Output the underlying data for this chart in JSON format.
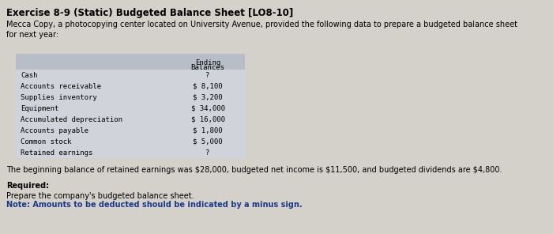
{
  "title": "Exercise 8-9 (Static) Budgeted Balance Sheet [LO8-10]",
  "intro_text": "Mecca Copy, a photocopying center located on University Avenue, provided the following data to prepare a budgeted balance sheet\nfor next year:",
  "table_rows": [
    [
      "Cash",
      "?"
    ],
    [
      "Accounts receivable",
      "$ 8,100"
    ],
    [
      "Supplies inventory",
      "$ 3,200"
    ],
    [
      "Equipment",
      "$ 34,000"
    ],
    [
      "Accumulated depreciation",
      "$ 16,000"
    ],
    [
      "Accounts payable",
      "$ 1,800"
    ],
    [
      "Common stock",
      "$ 5,000"
    ],
    [
      "Retained earnings",
      "?"
    ]
  ],
  "footer_text": "The beginning balance of retained earnings was $28,000, budgeted net income is $11,500, and budgeted dividends are $4,800.",
  "required_label": "Required:",
  "required_text": "Prepare the company's budgeted balance sheet.",
  "note_text": "Note: Amounts to be deducted should be indicated by a minus sign.",
  "fig_bg": "#d4d0ca",
  "table_header_bg": "#b8bec8",
  "table_body_bg": "#d0d4da",
  "title_fontsize": 8.5,
  "body_fontsize": 7.0,
  "table_fontsize": 6.5,
  "note_color": "#1a3a8a"
}
